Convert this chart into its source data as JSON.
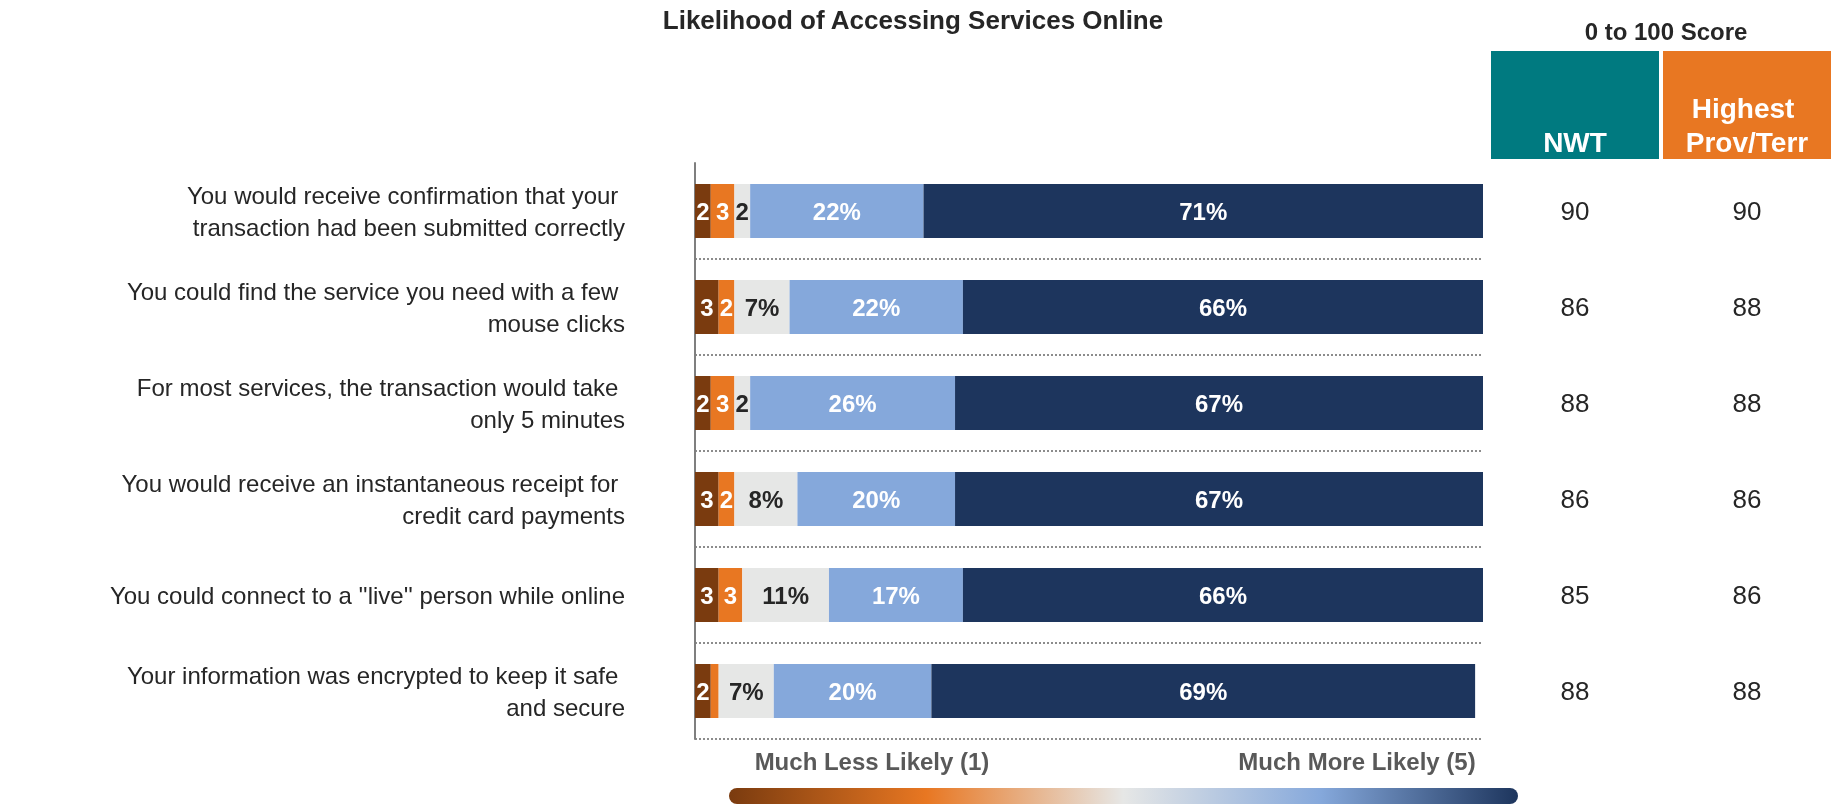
{
  "chart_data": [
    {
      "type": "bar",
      "orientation": "horizontal",
      "stacked": true,
      "title": "Likelihood of Accessing Services Online",
      "categories": [
        "You would receive confirmation that your transaction had been submitted correctly",
        "You could find the service you need with a few mouse clicks",
        "For most services, the transaction would take only 5 minutes",
        "You would receive an instantaneous receipt for credit card payments",
        "You could connect to a ''live'' person while online",
        "Your information was encrypted to keep it safe and secure"
      ],
      "series": [
        {
          "color": "#7a3b0f",
          "values": [
            2,
            3,
            2,
            3,
            3,
            2
          ],
          "value_labels": [
            "2",
            "3",
            "2",
            "3",
            "3",
            "2"
          ]
        },
        {
          "color": "#e87722",
          "values": [
            3,
            2,
            3,
            2,
            3,
            1
          ],
          "value_labels": [
            "3",
            "2",
            "3",
            "2",
            "3",
            null
          ]
        },
        {
          "color": "#e6e7e6",
          "values": [
            2,
            7,
            2,
            8,
            11,
            7
          ],
          "value_labels": [
            "2",
            "7%",
            "2",
            "8%",
            "11%",
            "7%"
          ]
        },
        {
          "color": "#85a8db",
          "values": [
            22,
            22,
            26,
            20,
            17,
            20
          ],
          "value_labels": [
            "22%",
            "22%",
            "26%",
            "20%",
            "17%",
            "20%"
          ]
        },
        {
          "color": "#1d355d",
          "values": [
            71,
            66,
            67,
            67,
            66,
            69
          ],
          "value_labels": [
            "71%",
            "66%",
            "67%",
            "67%",
            "66%",
            "69%"
          ]
        }
      ],
      "grid": "y",
      "annotations": [
        "Much Less Likely (1)",
        "Much More Likely (5)"
      ]
    },
    {
      "type": "heatmap",
      "title": "0 to 100 Score",
      "data_labels": true,
      "categories": [
        "NWT",
        "Highest Prov/Terr"
      ],
      "colors": [
        "#007a80",
        "#e87722"
      ],
      "y_categories": [
        null,
        null,
        null,
        null,
        null,
        null
      ],
      "cells": [
        [
          90,
          90
        ],
        [
          86,
          88
        ],
        [
          88,
          88
        ],
        [
          86,
          86
        ],
        [
          85,
          86
        ],
        [
          88,
          88
        ]
      ]
    }
  ]
}
